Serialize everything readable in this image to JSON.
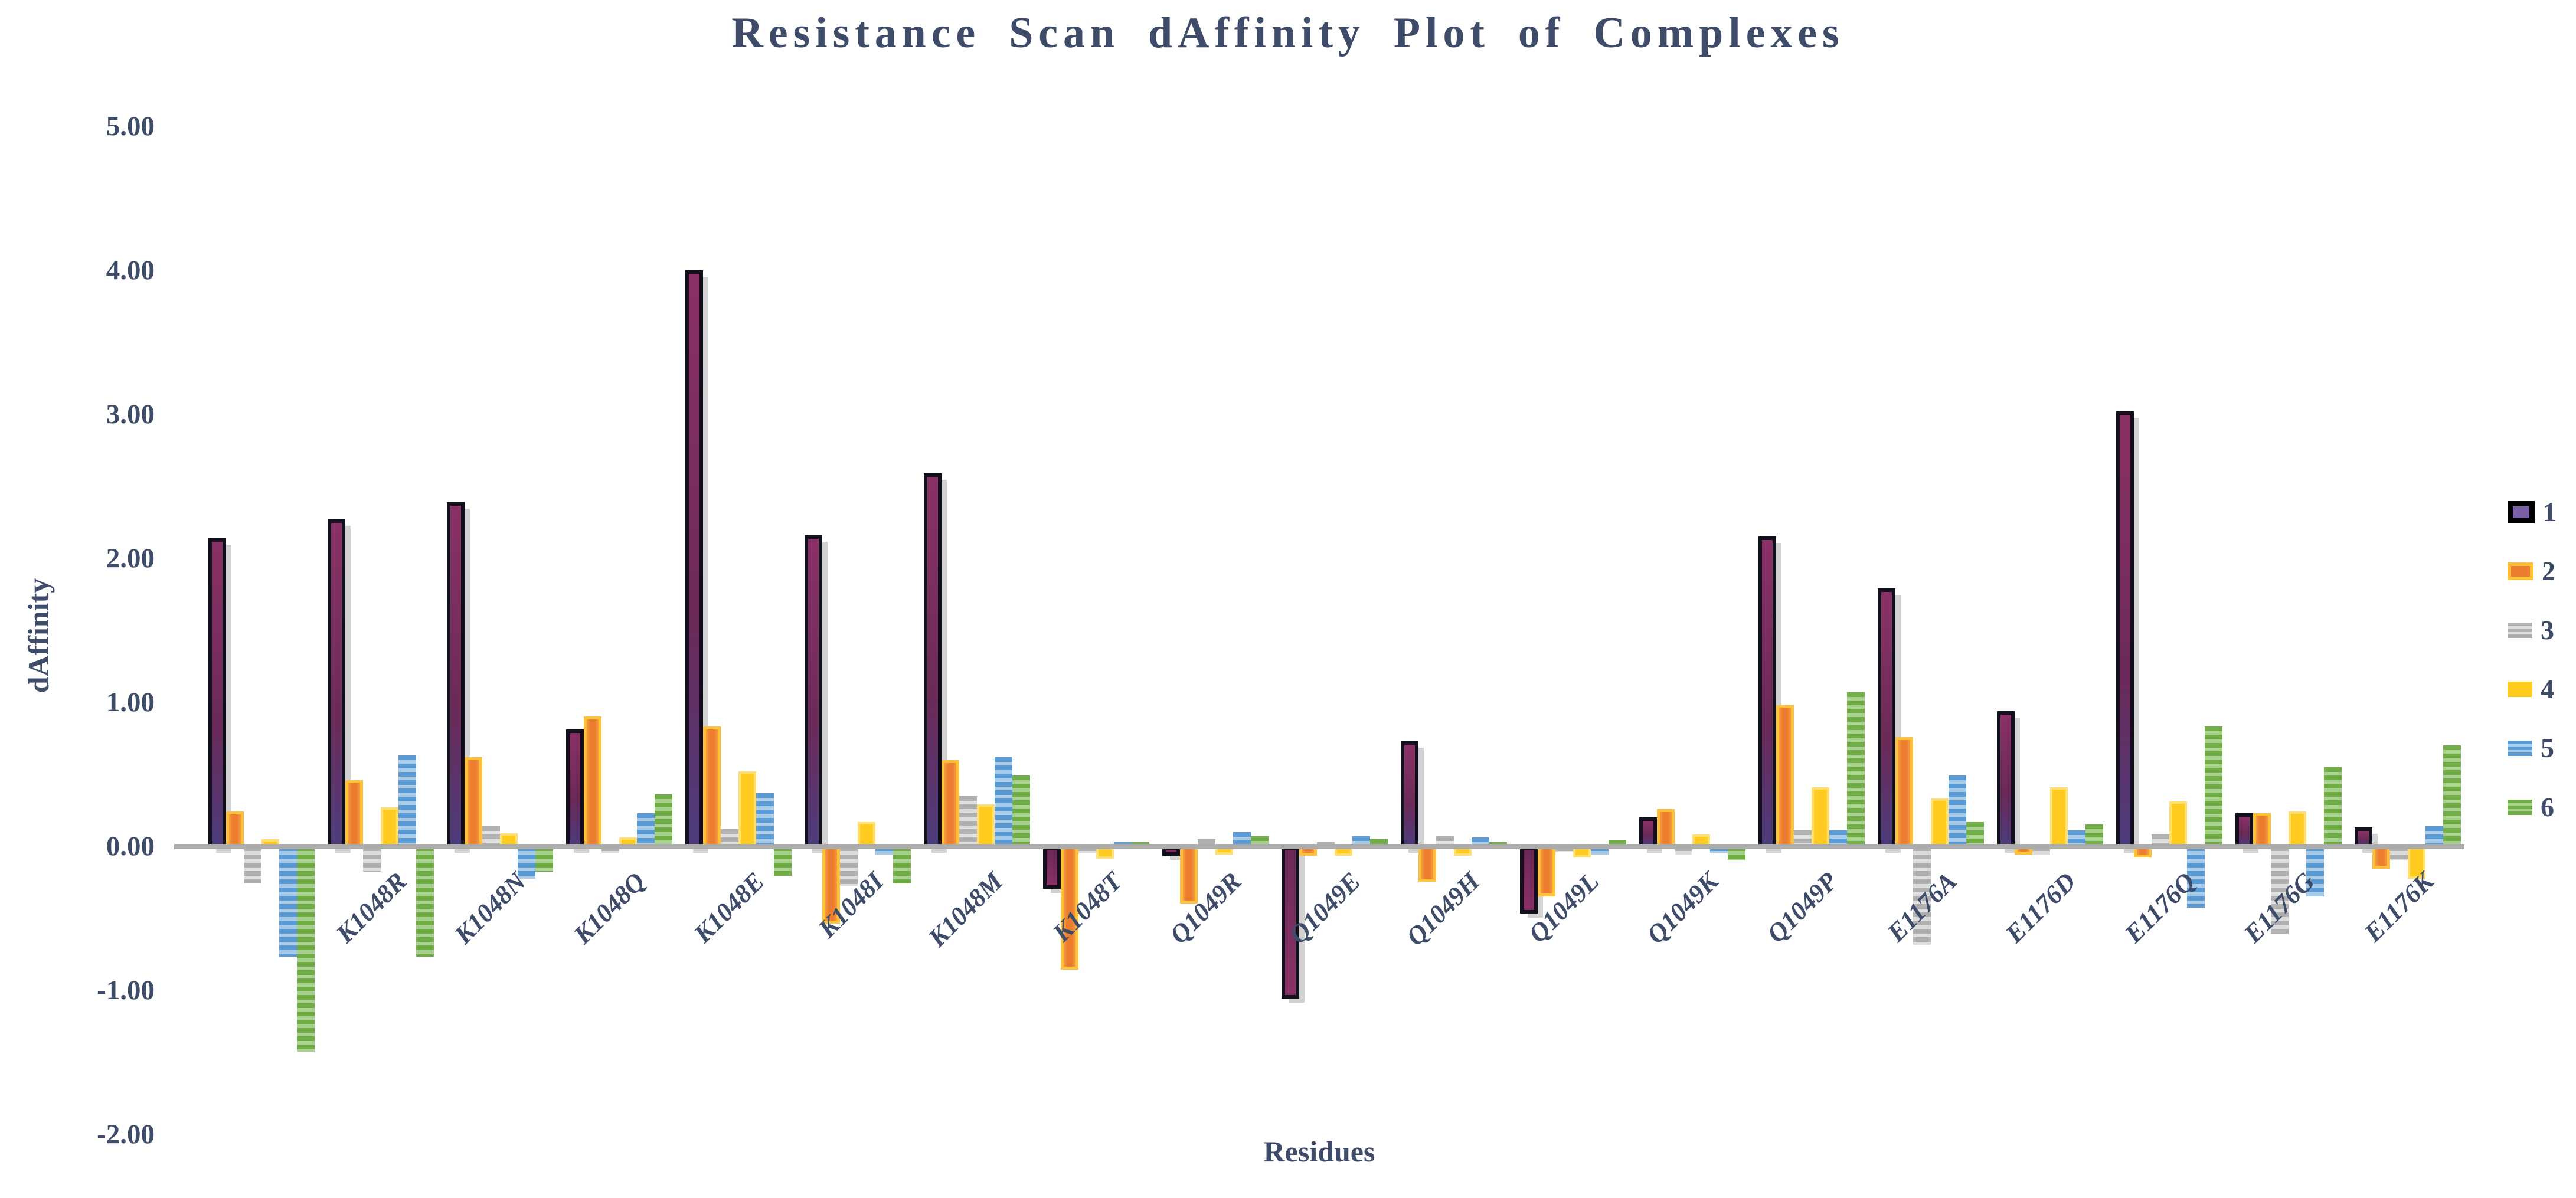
{
  "title": "Resistance Scan dAffinity Plot of Complexes",
  "axes": {
    "y_title": "dAffinity",
    "x_title": "Residues",
    "y_ticks": [
      "5.00",
      "4.00",
      "3.00",
      "2.00",
      "1.00",
      "0.00",
      "-1.00",
      "-2.00"
    ],
    "y_tick_values": [
      5,
      4,
      3,
      2,
      1,
      0,
      -1,
      -2
    ]
  },
  "legend": {
    "position": "right",
    "items": [
      {
        "label": "1",
        "swatch": "dark-purple-black-border"
      },
      {
        "label": "2",
        "swatch": "orange-gold-border"
      },
      {
        "label": "3",
        "swatch": "gray-striped"
      },
      {
        "label": "4",
        "swatch": "yellow-solid"
      },
      {
        "label": "5",
        "swatch": "blue-striped"
      },
      {
        "label": "6",
        "swatch": "green-striped"
      }
    ]
  },
  "colors": {
    "text": "#3e4c6a",
    "axis_line": "#ababab",
    "series1": "#6b2a58",
    "series1_border": "#000000",
    "series2": "#ec7d2f",
    "series2_border": "#ffc13a",
    "series3": "#b0b0b0",
    "series4": "#ffcc1f",
    "series5": "#5b9bd5",
    "series6": "#70ad47"
  },
  "chart_data": {
    "type": "bar",
    "title": "Resistance Scan dAffinity Plot of Complexes",
    "xlabel": "Residues",
    "ylabel": "dAffinity",
    "ylim": [
      -2,
      5
    ],
    "grid": false,
    "legend_position": "right",
    "categories": [
      "",
      "K1048R",
      "K1048N",
      "K1048Q",
      "K1048E",
      "K1048I",
      "K1048M",
      "K1048T",
      "Q1049R",
      "Q1049E",
      "Q1049H",
      "Q1049L",
      "Q1049K",
      "Q1049P",
      "E1176A",
      "E1176D",
      "E1176Q",
      "E1176G",
      "E1176K"
    ],
    "series": [
      {
        "name": "1",
        "values": [
          2.14,
          2.27,
          2.39,
          0.81,
          4.0,
          2.16,
          2.59,
          -0.28,
          -0.05,
          -1.04,
          0.73,
          -0.45,
          0.2,
          2.15,
          1.79,
          0.94,
          3.02,
          0.23,
          0.13
        ]
      },
      {
        "name": "2",
        "values": [
          0.24,
          0.46,
          0.62,
          0.9,
          0.83,
          -0.52,
          0.6,
          -0.84,
          -0.38,
          -0.05,
          -0.23,
          -0.33,
          0.26,
          0.98,
          0.76,
          -0.04,
          -0.06,
          0.23,
          -0.14
        ]
      },
      {
        "name": "3",
        "values": [
          -0.24,
          -0.16,
          0.14,
          -0.03,
          0.12,
          -0.26,
          0.35,
          -0.03,
          0.05,
          0.03,
          0.07,
          -0.02,
          -0.04,
          0.11,
          -0.67,
          -0.04,
          0.08,
          -0.59,
          -0.08
        ]
      },
      {
        "name": "4",
        "values": [
          0.05,
          0.27,
          0.09,
          0.06,
          0.52,
          0.17,
          0.29,
          -0.07,
          -0.04,
          -0.05,
          -0.05,
          -0.06,
          0.08,
          0.41,
          0.33,
          0.41,
          0.31,
          0.24,
          -0.21
        ]
      },
      {
        "name": "5",
        "values": [
          -0.75,
          0.63,
          -0.21,
          0.23,
          0.37,
          -0.04,
          0.62,
          0.03,
          0.1,
          0.07,
          0.06,
          -0.04,
          -0.03,
          0.11,
          0.49,
          0.11,
          -0.41,
          -0.33,
          0.14
        ]
      },
      {
        "name": "6",
        "values": [
          -1.41,
          -0.75,
          -0.16,
          0.36,
          -0.19,
          -0.24,
          0.49,
          0.03,
          0.07,
          0.05,
          0.03,
          0.04,
          -0.08,
          1.07,
          0.17,
          0.15,
          0.83,
          0.55,
          0.7
        ]
      }
    ]
  },
  "layout_note_visible_values_only": true
}
